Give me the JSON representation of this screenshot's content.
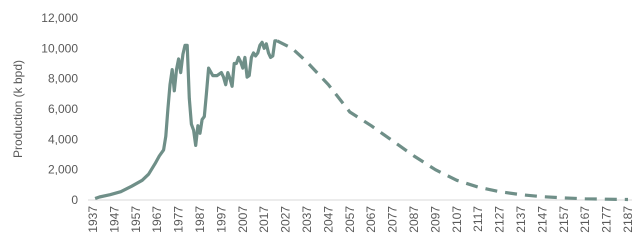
{
  "chart_data": {
    "type": "line",
    "y_label": "Production (k bpd)",
    "xlim": [
      1937,
      2187
    ],
    "xticks": [
      1937,
      1947,
      1957,
      1967,
      1977,
      1987,
      1997,
      2007,
      2017,
      2027,
      2037,
      2047,
      2057,
      2067,
      2077,
      2087,
      2097,
      2107,
      2117,
      2127,
      2137,
      2147,
      2157,
      2167,
      2177,
      2187
    ],
    "ylim": [
      0,
      12000
    ],
    "yticks": [
      0,
      {
        "value": 2000,
        "label": "2,000"
      },
      {
        "value": 4000,
        "label": "4,000"
      },
      {
        "value": 6000,
        "label": "6,000"
      },
      {
        "value": 8000,
        "label": "8,000"
      },
      {
        "value": 10000,
        "label": "10,000"
      },
      {
        "value": 12000,
        "label": "12,000"
      }
    ],
    "grid": false,
    "series": [
      {
        "color": "#6f8f88",
        "dashed": false,
        "x": [
          1938,
          1940,
          1945,
          1950,
          1955,
          1960,
          1963,
          1966,
          1968,
          1970,
          1971,
          1972,
          1973,
          1974,
          1975,
          1976,
          1977,
          1978,
          1979,
          1980,
          1981,
          1982,
          1983,
          1984,
          1985,
          1986,
          1987,
          1988,
          1989,
          1990,
          1991,
          1993,
          1995,
          1997,
          1998,
          1999,
          2000,
          2001,
          2002,
          2003,
          2004,
          2005,
          2006,
          2007,
          2008,
          2009,
          2010,
          2011,
          2012,
          2013,
          2014,
          2015,
          2016,
          2017,
          2018,
          2019,
          2020,
          2021,
          2022,
          2023
        ],
        "values": [
          100,
          200,
          350,
          550,
          900,
          1300,
          1700,
          2400,
          2900,
          3300,
          4200,
          6000,
          7600,
          8600,
          7200,
          8600,
          9300,
          8400,
          9600,
          10200,
          10200,
          6700,
          5000,
          4600,
          3600,
          4900,
          4400,
          5300,
          5500,
          7000,
          8700,
          8200,
          8200,
          8400,
          8100,
          7600,
          8400,
          8000,
          7500,
          9000,
          9000,
          9400,
          9100,
          8700,
          9400,
          8100,
          8200,
          9400,
          9700,
          9500,
          9700,
          10200,
          10400,
          10000,
          10300,
          9700,
          9400,
          9500,
          10500,
          10500
        ]
      },
      {
        "color": "#6f8f88",
        "dashed": true,
        "x": [
          2023,
          2030,
          2037,
          2047,
          2057,
          2067,
          2077,
          2087,
          2097,
          2107,
          2117,
          2127,
          2137,
          2147,
          2157,
          2167,
          2177,
          2187
        ],
        "values": [
          10500,
          10000,
          9100,
          7600,
          5800,
          4900,
          3900,
          2900,
          2000,
          1300,
          850,
          550,
          350,
          220,
          140,
          80,
          50,
          30
        ]
      }
    ]
  }
}
